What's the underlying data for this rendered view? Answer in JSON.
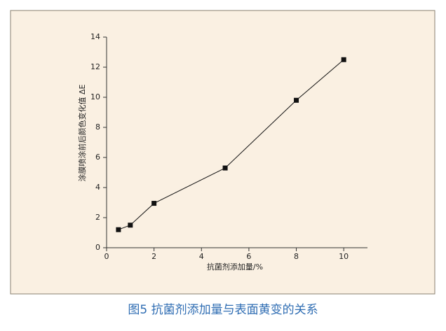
{
  "chart_data": {
    "type": "line",
    "caption": "图5 抗菌剂添加量与表面黄变的关系",
    "xlabel": "抗菌剂添加量/%",
    "ylabel": "涂膜喷涂前后颜色变化值 ΔE",
    "x": [
      0.5,
      1,
      2,
      5,
      8,
      10
    ],
    "series": [
      {
        "color": "#111111",
        "values": [
          1.2,
          1.5,
          2.95,
          5.3,
          9.8,
          12.5
        ]
      }
    ],
    "xlim": [
      0,
      11
    ],
    "xticks": [
      0,
      2,
      4,
      6,
      8,
      10
    ],
    "ylim": [
      0,
      14
    ],
    "yticks": [
      0,
      2,
      4,
      6,
      8,
      10,
      12,
      14
    ]
  }
}
